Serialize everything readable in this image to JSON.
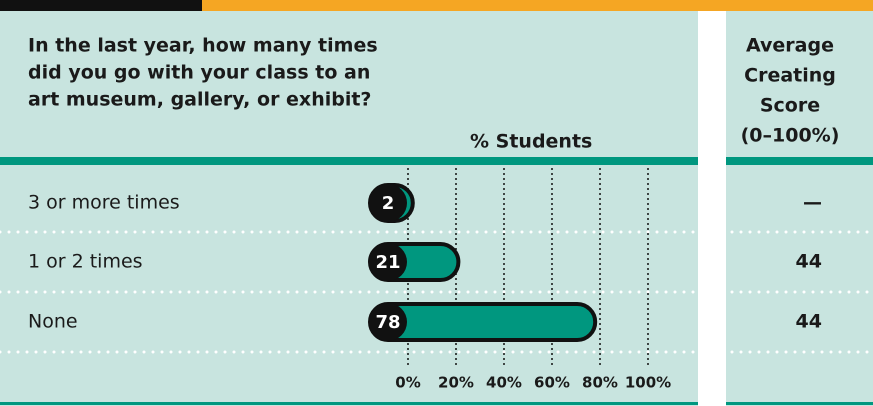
{
  "chart_data": {
    "type": "bar",
    "title_lines": [
      "In the last year, how many times",
      "did you go with your class to an",
      "art museum, gallery, or exhibit?"
    ],
    "x_label": "% Students",
    "score_header_lines": [
      "Average",
      "Creating",
      "Score",
      "(0–100%)"
    ],
    "categories": [
      "3 or more times",
      "1 or 2 times",
      "None"
    ],
    "values": [
      2,
      21,
      78
    ],
    "scores": [
      "—",
      44,
      44
    ],
    "color": "#00977f",
    "xlim": [
      0,
      100
    ],
    "xticks": [
      {
        "value": 0,
        "label": "0%"
      },
      {
        "value": 20,
        "label": "20%"
      },
      {
        "value": 40,
        "label": "40%"
      },
      {
        "value": 60,
        "label": "60%"
      },
      {
        "value": 80,
        "label": "80%"
      },
      {
        "value": 100,
        "label": "100%"
      }
    ],
    "grid": true
  }
}
